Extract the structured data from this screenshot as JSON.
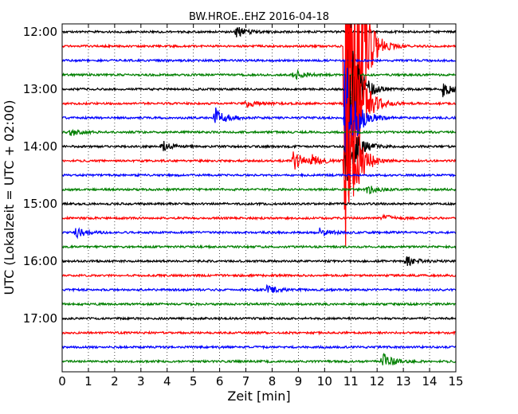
{
  "chart_data": {
    "type": "line",
    "title": "BW.HROE..EHZ 2016-04-18",
    "xlabel": "Zeit  [min]",
    "ylabel": "UTC (Lokalzeit = UTC + 02:00)",
    "xlim": [
      0,
      15
    ],
    "x_ticks": [
      "0",
      "1",
      "2",
      "3",
      "4",
      "5",
      "6",
      "7",
      "8",
      "9",
      "10",
      "11",
      "12",
      "13",
      "14",
      "15"
    ],
    "y_tick_labels": [
      "12:00",
      "13:00",
      "14:00",
      "15:00",
      "16:00",
      "17:00"
    ],
    "grid": "vertical dotted",
    "trace_interval_minutes": 15,
    "trace_colors": [
      "#000000",
      "#ff0000",
      "#0000ff",
      "#008000"
    ],
    "traces": [
      {
        "start": "12:00",
        "events": [
          {
            "t": 6.6,
            "amp": 0.4
          }
        ]
      },
      {
        "start": "12:15",
        "events": [
          {
            "t": 10.75,
            "amp": 16
          },
          {
            "t": 10.9,
            "amp": 8
          }
        ]
      },
      {
        "start": "12:30",
        "events": []
      },
      {
        "start": "12:45",
        "events": [
          {
            "t": 8.8,
            "amp": 0.4
          }
        ]
      },
      {
        "start": "13:00",
        "events": [
          {
            "t": 10.85,
            "amp": 6
          },
          {
            "t": 14.5,
            "amp": 0.5
          }
        ]
      },
      {
        "start": "13:15",
        "events": [
          {
            "t": 10.8,
            "amp": 13
          },
          {
            "t": 7.0,
            "amp": 0.3
          }
        ]
      },
      {
        "start": "13:30",
        "events": [
          {
            "t": 5.8,
            "amp": 0.8
          },
          {
            "t": 10.75,
            "amp": 5
          }
        ]
      },
      {
        "start": "13:45",
        "events": [
          {
            "t": 0.3,
            "amp": 0.3
          }
        ]
      },
      {
        "start": "14:00",
        "events": [
          {
            "t": 3.8,
            "amp": 0.4
          },
          {
            "t": 10.8,
            "amp": 3
          }
        ]
      },
      {
        "start": "14:15",
        "events": [
          {
            "t": 8.8,
            "amp": 0.7
          },
          {
            "t": 9.5,
            "amp": 0.4
          },
          {
            "t": 10.75,
            "amp": 8
          }
        ]
      },
      {
        "start": "14:30",
        "events": []
      },
      {
        "start": "14:45",
        "events": [
          {
            "t": 11.6,
            "amp": 0.3
          }
        ]
      },
      {
        "start": "15:00",
        "events": []
      },
      {
        "start": "15:15",
        "events": [
          {
            "t": 12.2,
            "amp": 0.3
          }
        ]
      },
      {
        "start": "15:30",
        "events": [
          {
            "t": 0.5,
            "amp": 0.4
          },
          {
            "t": 9.8,
            "amp": 0.3
          }
        ]
      },
      {
        "start": "15:45",
        "events": []
      },
      {
        "start": "16:00",
        "events": [
          {
            "t": 13.1,
            "amp": 0.4
          }
        ]
      },
      {
        "start": "16:15",
        "events": []
      },
      {
        "start": "16:30",
        "events": [
          {
            "t": 7.8,
            "amp": 0.3
          }
        ]
      },
      {
        "start": "16:45",
        "events": []
      },
      {
        "start": "17:00",
        "events": []
      },
      {
        "start": "17:15",
        "events": []
      },
      {
        "start": "17:30",
        "events": []
      },
      {
        "start": "17:45",
        "events": [
          {
            "t": 12.2,
            "amp": 0.6
          }
        ]
      }
    ]
  }
}
